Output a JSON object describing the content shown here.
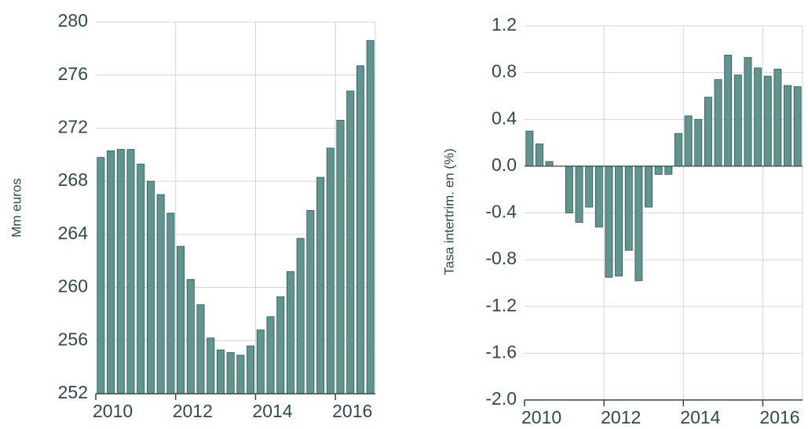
{
  "chart_data": [
    {
      "type": "bar",
      "ylabel": "Mm euros",
      "categories": [
        "2010",
        null,
        null,
        null,
        null,
        null,
        null,
        null,
        "2012",
        null,
        null,
        null,
        null,
        null,
        null,
        null,
        "2014",
        null,
        null,
        null,
        null,
        null,
        null,
        null,
        "2016",
        null,
        null,
        null
      ],
      "values": [
        269.8,
        270.3,
        270.4,
        270.4,
        269.3,
        268.0,
        267.0,
        265.6,
        263.1,
        260.6,
        258.7,
        256.2,
        255.3,
        255.1,
        254.9,
        255.6,
        256.8,
        257.8,
        259.3,
        261.2,
        263.7,
        265.8,
        268.3,
        270.5,
        272.6,
        274.8,
        276.7,
        278.6
      ],
      "color": "#5f948f",
      "ylim": [
        252,
        280
      ],
      "yticks": [
        252,
        256,
        260,
        264,
        268,
        272,
        276,
        280
      ],
      "grid": true
    },
    {
      "type": "bar",
      "ylabel": "Tasa intertrim. en (%)",
      "categories": [
        "2010",
        null,
        null,
        null,
        null,
        null,
        null,
        null,
        "2012",
        null,
        null,
        null,
        null,
        null,
        null,
        null,
        "2014",
        null,
        null,
        null,
        null,
        null,
        null,
        null,
        "2016",
        null,
        null,
        null
      ],
      "values": [
        0.3,
        0.19,
        0.04,
        0.0,
        -0.4,
        -0.48,
        -0.35,
        -0.52,
        -0.95,
        -0.94,
        -0.72,
        -0.98,
        -0.35,
        -0.07,
        -0.07,
        0.28,
        0.43,
        0.4,
        0.59,
        0.74,
        0.95,
        0.78,
        0.93,
        0.84,
        0.77,
        0.83,
        0.69,
        0.68
      ],
      "color": "#5f948f",
      "ylim": [
        -2.0,
        1.2
      ],
      "yticks": [
        {
          "value": -2.0,
          "label": "-2.0"
        },
        -1.6,
        -1.2,
        -0.8,
        -0.4,
        {
          "value": 0.0,
          "label": "0.0"
        },
        0.4,
        0.8,
        1.2
      ],
      "grid": true
    }
  ]
}
